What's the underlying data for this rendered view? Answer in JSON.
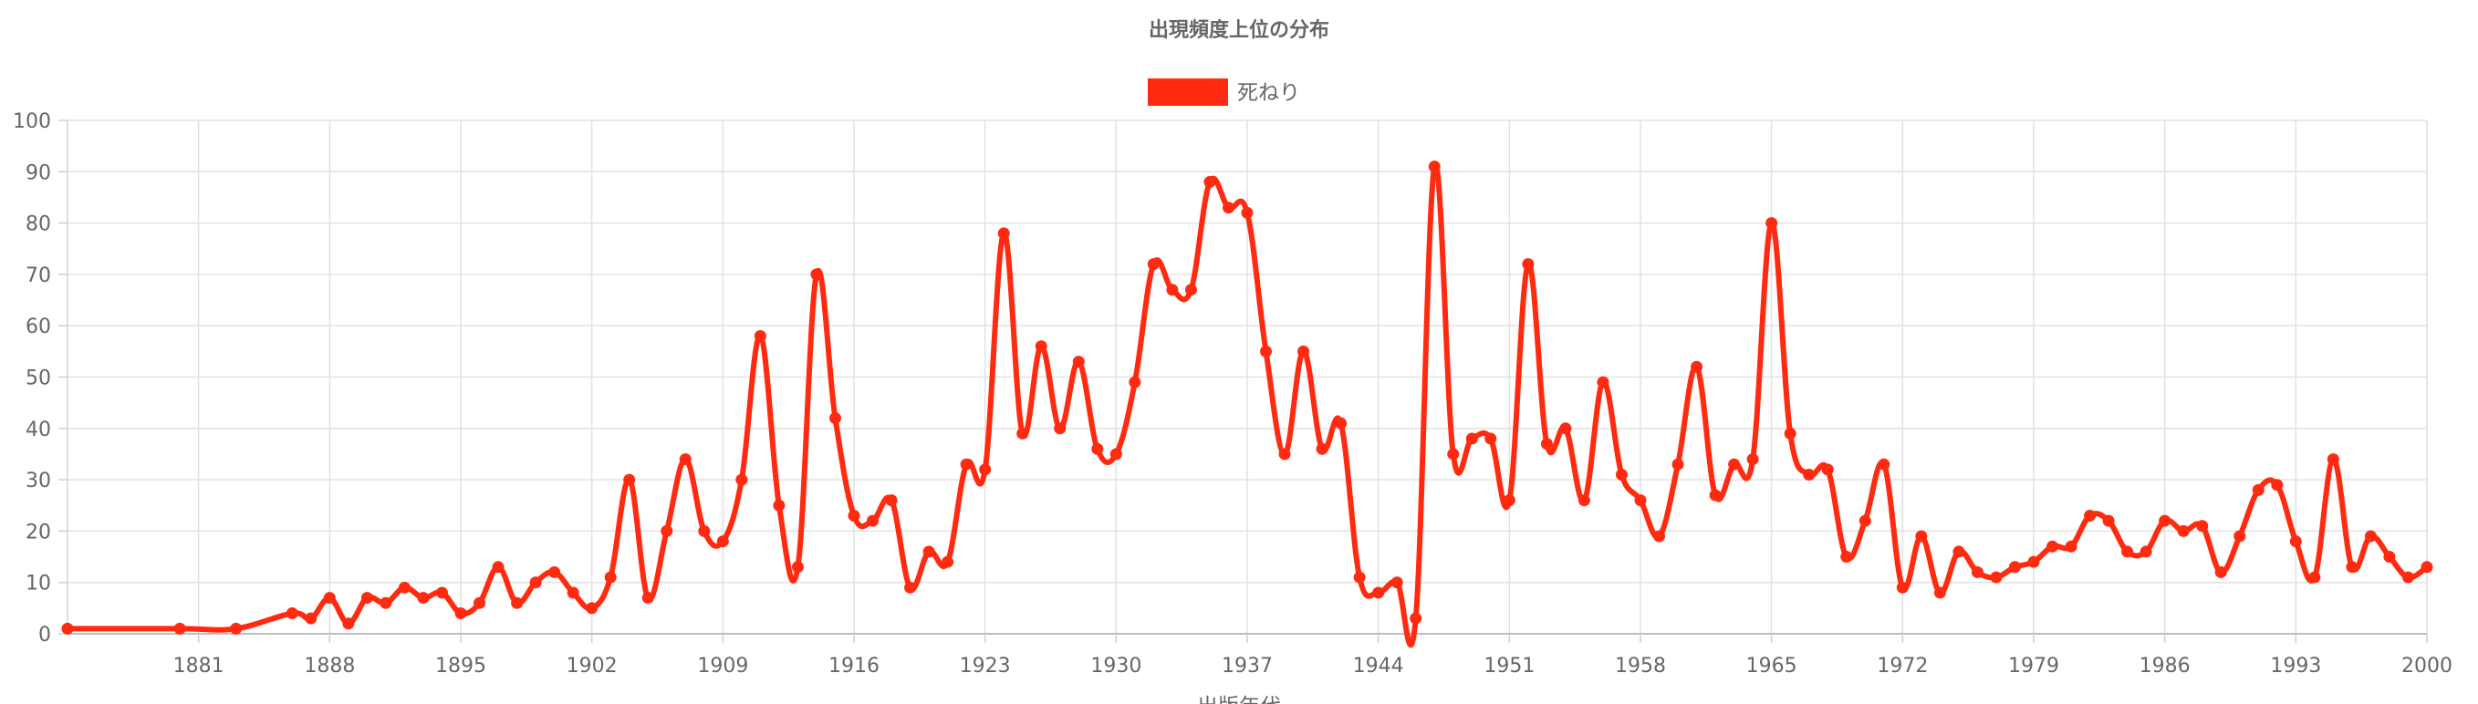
{
  "chart_data": {
    "type": "line",
    "title": "出現頻度上位の分布",
    "xlabel": "出版年代",
    "ylabel": "",
    "ylim": [
      0,
      100
    ],
    "y_ticks": [
      "0",
      "10",
      "20",
      "30",
      "40",
      "50",
      "60",
      "70",
      "80",
      "90",
      "100"
    ],
    "x_ticks": [
      "1881",
      "1888",
      "1895",
      "1902",
      "1909",
      "1916",
      "1923",
      "1930",
      "1937",
      "1944",
      "1951",
      "1958",
      "1965",
      "1972",
      "1979",
      "1986",
      "1993",
      "2000"
    ],
    "grid": true,
    "legend_position": "top-center",
    "series": [
      {
        "name": "死ねり",
        "color": "#ff2a0f",
        "points": [
          [
            1874,
            1
          ],
          [
            1880,
            1
          ],
          [
            1883,
            1
          ],
          [
            1886,
            4
          ],
          [
            1887,
            3
          ],
          [
            1888,
            7
          ],
          [
            1889,
            2
          ],
          [
            1890,
            7
          ],
          [
            1891,
            6
          ],
          [
            1892,
            9
          ],
          [
            1893,
            7
          ],
          [
            1894,
            8
          ],
          [
            1895,
            4
          ],
          [
            1896,
            6
          ],
          [
            1897,
            13
          ],
          [
            1898,
            6
          ],
          [
            1899,
            10
          ],
          [
            1900,
            12
          ],
          [
            1901,
            8
          ],
          [
            1902,
            5
          ],
          [
            1903,
            11
          ],
          [
            1904,
            30
          ],
          [
            1905,
            7
          ],
          [
            1906,
            20
          ],
          [
            1907,
            34
          ],
          [
            1908,
            20
          ],
          [
            1909,
            18
          ],
          [
            1910,
            30
          ],
          [
            1911,
            58
          ],
          [
            1912,
            25
          ],
          [
            1913,
            13
          ],
          [
            1914,
            70
          ],
          [
            1915,
            42
          ],
          [
            1916,
            23
          ],
          [
            1917,
            22
          ],
          [
            1918,
            26
          ],
          [
            1919,
            9
          ],
          [
            1920,
            16
          ],
          [
            1921,
            14
          ],
          [
            1922,
            33
          ],
          [
            1923,
            32
          ],
          [
            1924,
            78
          ],
          [
            1925,
            39
          ],
          [
            1926,
            56
          ],
          [
            1927,
            40
          ],
          [
            1928,
            53
          ],
          [
            1929,
            36
          ],
          [
            1930,
            35
          ],
          [
            1931,
            49
          ],
          [
            1932,
            72
          ],
          [
            1933,
            67
          ],
          [
            1934,
            67
          ],
          [
            1935,
            88
          ],
          [
            1936,
            83
          ],
          [
            1937,
            82
          ],
          [
            1938,
            55
          ],
          [
            1939,
            35
          ],
          [
            1940,
            55
          ],
          [
            1941,
            36
          ],
          [
            1942,
            41
          ],
          [
            1943,
            11
          ],
          [
            1944,
            8
          ],
          [
            1945,
            10
          ],
          [
            1946,
            3
          ],
          [
            1947,
            91
          ],
          [
            1948,
            35
          ],
          [
            1949,
            38
          ],
          [
            1950,
            38
          ],
          [
            1951,
            26
          ],
          [
            1952,
            72
          ],
          [
            1953,
            37
          ],
          [
            1954,
            40
          ],
          [
            1955,
            26
          ],
          [
            1956,
            49
          ],
          [
            1957,
            31
          ],
          [
            1958,
            26
          ],
          [
            1959,
            19
          ],
          [
            1960,
            33
          ],
          [
            1961,
            52
          ],
          [
            1962,
            27
          ],
          [
            1963,
            33
          ],
          [
            1964,
            34
          ],
          [
            1965,
            80
          ],
          [
            1966,
            39
          ],
          [
            1967,
            31
          ],
          [
            1968,
            32
          ],
          [
            1969,
            15
          ],
          [
            1970,
            22
          ],
          [
            1971,
            33
          ],
          [
            1972,
            9
          ],
          [
            1973,
            19
          ],
          [
            1974,
            8
          ],
          [
            1975,
            16
          ],
          [
            1976,
            12
          ],
          [
            1977,
            11
          ],
          [
            1978,
            13
          ],
          [
            1979,
            14
          ],
          [
            1980,
            17
          ],
          [
            1981,
            17
          ],
          [
            1982,
            23
          ],
          [
            1983,
            22
          ],
          [
            1984,
            16
          ],
          [
            1985,
            16
          ],
          [
            1986,
            22
          ],
          [
            1987,
            20
          ],
          [
            1988,
            21
          ],
          [
            1989,
            12
          ],
          [
            1990,
            19
          ],
          [
            1991,
            28
          ],
          [
            1992,
            29
          ],
          [
            1993,
            18
          ],
          [
            1994,
            11
          ],
          [
            1995,
            34
          ],
          [
            1996,
            13
          ],
          [
            1997,
            19
          ],
          [
            1998,
            15
          ],
          [
            1999,
            11
          ],
          [
            2000,
            13
          ]
        ]
      }
    ]
  }
}
